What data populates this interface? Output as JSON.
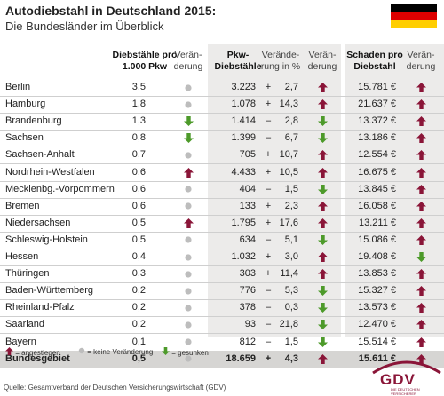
{
  "title": "Autodiebstahl in Deutschland 2015:",
  "subtitle": "Die Bundesländer im Überblick",
  "colors": {
    "up": "#8a1538",
    "down": "#4d9a2a",
    "flat": "#bdbdbd",
    "band": "#ecebea",
    "total_band": "#d6d5d3"
  },
  "chart_data": {
    "type": "table",
    "columns": {
      "state": "",
      "rate": "Diebstähle pro 1.000 Pkw",
      "rate_change": "Verän-derung",
      "thefts": "Pkw-Diebstähle",
      "thefts_change_pct": "Verände-rung in %",
      "thefts_trend": "Verän-derung",
      "damage": "Schaden pro Diebstahl",
      "damage_change": "Verän-derung"
    },
    "rows": [
      {
        "state": "Berlin",
        "rate": "3,5",
        "rate_change": "flat",
        "thefts": "3.223",
        "sign": "+",
        "pct": "2,7",
        "thefts_trend": "up",
        "damage": "15.781 €",
        "damage_change": "up"
      },
      {
        "state": "Hamburg",
        "rate": "1,8",
        "rate_change": "flat",
        "thefts": "1.078",
        "sign": "+",
        "pct": "14,3",
        "thefts_trend": "up",
        "damage": "21.637 €",
        "damage_change": "up"
      },
      {
        "state": "Brandenburg",
        "rate": "1,3",
        "rate_change": "down",
        "thefts": "1.414",
        "sign": "–",
        "pct": "2,8",
        "thefts_trend": "down",
        "damage": "13.372 €",
        "damage_change": "up"
      },
      {
        "state": "Sachsen",
        "rate": "0,8",
        "rate_change": "down",
        "thefts": "1.399",
        "sign": "–",
        "pct": "6,7",
        "thefts_trend": "down",
        "damage": "13.186 €",
        "damage_change": "up"
      },
      {
        "state": "Sachsen-Anhalt",
        "rate": "0,7",
        "rate_change": "flat",
        "thefts": "705",
        "sign": "+",
        "pct": "10,7",
        "thefts_trend": "up",
        "damage": "12.554 €",
        "damage_change": "up"
      },
      {
        "state": "Nordrhein-Westfalen",
        "rate": "0,6",
        "rate_change": "up",
        "thefts": "4.433",
        "sign": "+",
        "pct": "10,5",
        "thefts_trend": "up",
        "damage": "16.675 €",
        "damage_change": "up"
      },
      {
        "state": "Mecklenbg.-Vorpommern",
        "rate": "0,6",
        "rate_change": "flat",
        "thefts": "404",
        "sign": "–",
        "pct": "1,5",
        "thefts_trend": "down",
        "damage": "13.845 €",
        "damage_change": "up"
      },
      {
        "state": "Bremen",
        "rate": "0,6",
        "rate_change": "flat",
        "thefts": "133",
        "sign": "+",
        "pct": "2,3",
        "thefts_trend": "up",
        "damage": "16.058 €",
        "damage_change": "up"
      },
      {
        "state": "Niedersachsen",
        "rate": "0,5",
        "rate_change": "up",
        "thefts": "1.795",
        "sign": "+",
        "pct": "17,6",
        "thefts_trend": "up",
        "damage": "13.211 €",
        "damage_change": "up"
      },
      {
        "state": "Schleswig-Holstein",
        "rate": "0,5",
        "rate_change": "flat",
        "thefts": "634",
        "sign": "–",
        "pct": "5,1",
        "thefts_trend": "down",
        "damage": "15.086 €",
        "damage_change": "up"
      },
      {
        "state": "Hessen",
        "rate": "0,4",
        "rate_change": "flat",
        "thefts": "1.032",
        "sign": "+",
        "pct": "3,0",
        "thefts_trend": "up",
        "damage": "19.408 €",
        "damage_change": "down"
      },
      {
        "state": "Thüringen",
        "rate": "0,3",
        "rate_change": "flat",
        "thefts": "303",
        "sign": "+",
        "pct": "11,4",
        "thefts_trend": "up",
        "damage": "13.853 €",
        "damage_change": "up"
      },
      {
        "state": "Baden-Württemberg",
        "rate": "0,2",
        "rate_change": "flat",
        "thefts": "776",
        "sign": "–",
        "pct": "5,3",
        "thefts_trend": "down",
        "damage": "15.327 €",
        "damage_change": "up"
      },
      {
        "state": "Rheinland-Pfalz",
        "rate": "0,2",
        "rate_change": "flat",
        "thefts": "378",
        "sign": "–",
        "pct": "0,3",
        "thefts_trend": "down",
        "damage": "13.573 €",
        "damage_change": "up"
      },
      {
        "state": "Saarland",
        "rate": "0,2",
        "rate_change": "flat",
        "thefts": "93",
        "sign": "–",
        "pct": "21,8",
        "thefts_trend": "down",
        "damage": "12.470 €",
        "damage_change": "up"
      },
      {
        "state": "Bayern",
        "rate": "0,1",
        "rate_change": "flat",
        "thefts": "812",
        "sign": "–",
        "pct": "1,5",
        "thefts_trend": "down",
        "damage": "15.514 €",
        "damage_change": "up"
      }
    ],
    "total": {
      "state": "Bundesgebiet",
      "rate": "0,5",
      "rate_change": "flat",
      "thefts": "18.659",
      "sign": "+",
      "pct": "4,3",
      "thefts_trend": "up",
      "damage": "15.611 €",
      "damage_change": "up"
    }
  },
  "legend": [
    {
      "icon": "up",
      "label": "= angestiegen"
    },
    {
      "icon": "flat",
      "label": "= keine Veränderung"
    },
    {
      "icon": "down",
      "label": "= gesunken"
    }
  ],
  "source": "Quelle: Gesamtverband der Deutschen Versicherungswirtschaft (GDV)",
  "logo": {
    "text": "GDV",
    "sub": "DIE DEUTSCHEN VERSICHERER"
  }
}
